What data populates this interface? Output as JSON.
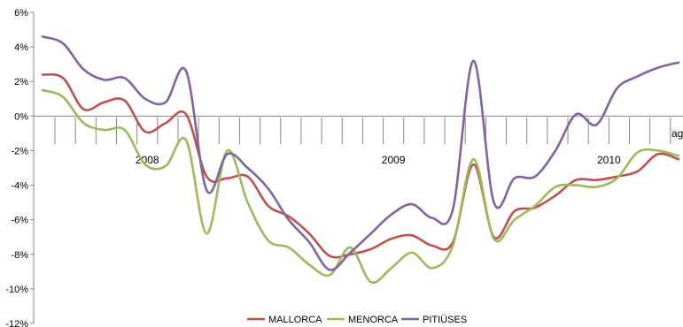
{
  "chart_data": {
    "type": "line",
    "ylim": [
      -12,
      6
    ],
    "yticks": [
      "6%",
      "4%",
      "2%",
      "0%",
      "-2%",
      "-4%",
      "-6%",
      "-8%",
      "-10%",
      "-12%"
    ],
    "grid": false,
    "legend_position": "bottom",
    "x_period_count": 31,
    "year_labels": [
      {
        "label": "2008",
        "x": 4.5
      },
      {
        "label": "2009",
        "x": 16.5
      },
      {
        "label": "2010",
        "x": 27.0
      }
    ],
    "trailing_label": "ag",
    "series": [
      {
        "name": "MALLORCA",
        "color": "#C0504D",
        "values": [
          2.4,
          2.2,
          0.4,
          0.8,
          0.9,
          -0.9,
          -0.4,
          0.1,
          -3.5,
          -3.6,
          -3.5,
          -5.2,
          -5.8,
          -6.8,
          -8.1,
          -8.0,
          -7.7,
          -7.1,
          -6.9,
          -7.5,
          -7.3,
          -2.8,
          -7.0,
          -5.5,
          -5.3,
          -4.6,
          -3.7,
          -3.7,
          -3.5,
          -3.2,
          -2.2,
          -2.5
        ]
      },
      {
        "name": "MENORCA",
        "color": "#9BBB59",
        "values": [
          1.5,
          1.1,
          -0.4,
          -0.8,
          -0.8,
          -2.8,
          -2.9,
          -1.4,
          -6.8,
          -2.0,
          -5.0,
          -7.2,
          -7.6,
          -8.6,
          -9.2,
          -7.6,
          -9.6,
          -8.8,
          -7.9,
          -8.8,
          -7.5,
          -2.5,
          -7.1,
          -6.0,
          -5.2,
          -4.1,
          -4.0,
          -4.1,
          -3.6,
          -2.1,
          -2.0,
          -2.3
        ]
      },
      {
        "name": "PITIÜSES",
        "color": "#8064A2",
        "values": [
          4.6,
          4.2,
          2.7,
          2.1,
          2.2,
          1.0,
          0.8,
          2.6,
          -4.3,
          -2.2,
          -3.0,
          -4.2,
          -6.0,
          -7.3,
          -8.9,
          -7.9,
          -6.8,
          -5.7,
          -5.1,
          -5.9,
          -5.4,
          3.2,
          -5.0,
          -3.6,
          -3.5,
          -2.0,
          0.1,
          -0.5,
          1.6,
          2.3,
          2.8,
          3.1
        ]
      }
    ]
  }
}
